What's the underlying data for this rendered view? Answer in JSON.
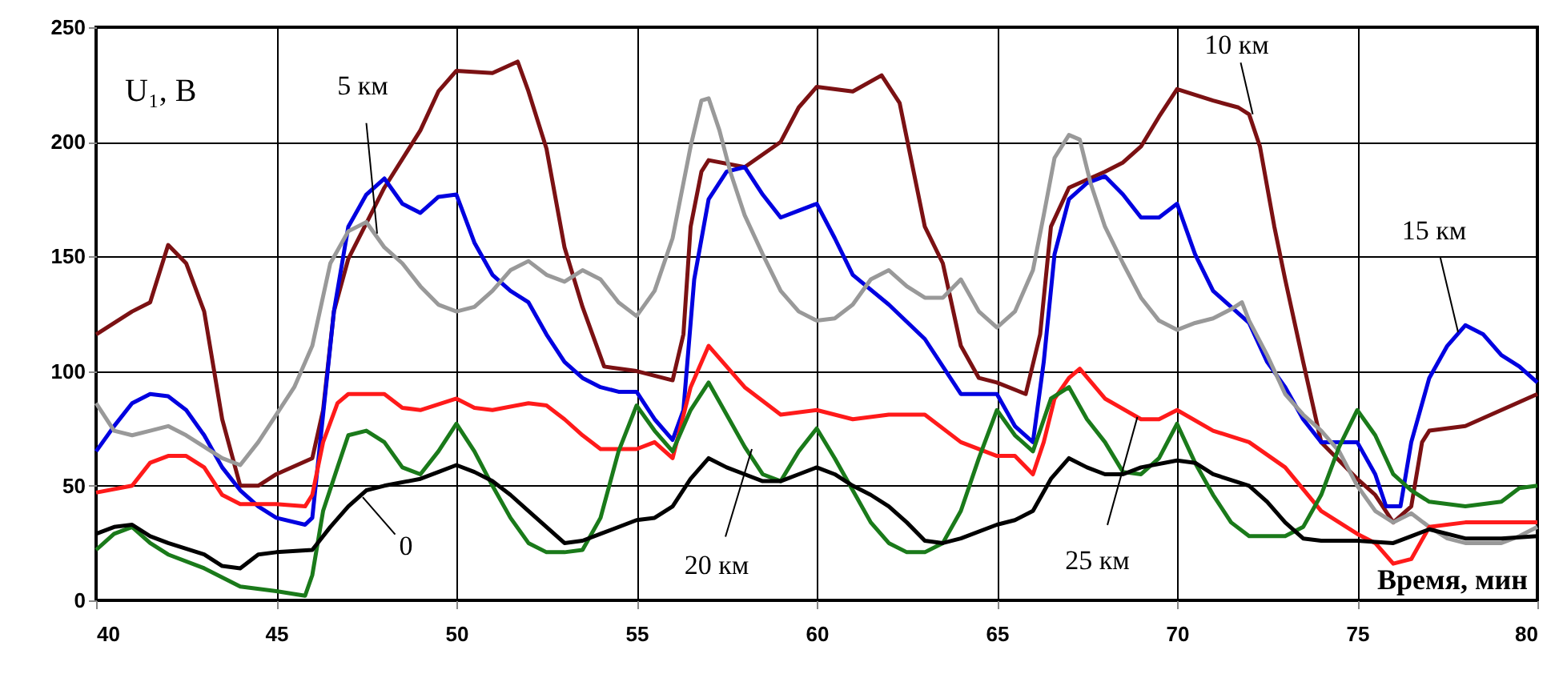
{
  "chart_data": {
    "type": "line",
    "xlabel": "Время, мин",
    "ylabel": "U₁, В",
    "xlim": [
      40,
      80
    ],
    "xticks": [
      40,
      45,
      50,
      55,
      60,
      65,
      70,
      75,
      80
    ],
    "ylim": [
      0,
      250
    ],
    "yticks": [
      0,
      50,
      100,
      150,
      200,
      250
    ],
    "grid": true,
    "series": [
      {
        "color": "#7b1113",
        "x": [
          40,
          41,
          41.5,
          42,
          42.5,
          43,
          43.5,
          44,
          44.5,
          45,
          46,
          46.3,
          46.6,
          47,
          48,
          49,
          49.5,
          50,
          51,
          51.7,
          52,
          52.5,
          53,
          53.5,
          54.1,
          55,
          56,
          56.3,
          56.5,
          56.8,
          57,
          58,
          59,
          59.5,
          60,
          61,
          61.8,
          62.3,
          63,
          63.5,
          64,
          64.5,
          65,
          65.8,
          66.2,
          66.5,
          67,
          68,
          68.5,
          69,
          69.5,
          70,
          71,
          71.7,
          72,
          72.3,
          72.7,
          73,
          73.5,
          74,
          75,
          75.5,
          76,
          76.5,
          76.8,
          77,
          78,
          79,
          80
        ],
        "values": [
          116,
          126,
          130,
          155,
          147,
          126,
          79,
          50,
          50,
          55,
          62,
          83,
          126,
          149,
          180,
          205,
          222,
          231,
          230,
          235,
          222,
          197,
          154,
          128,
          102,
          100,
          96,
          116,
          163,
          187,
          192,
          189,
          200,
          215,
          224,
          222,
          229,
          217,
          163,
          147,
          111,
          97,
          95,
          90,
          116,
          163,
          180,
          187,
          191,
          198,
          211,
          223,
          218,
          215,
          212,
          198,
          163,
          140,
          104,
          69,
          53,
          46,
          34,
          41,
          69,
          74,
          76,
          83,
          90
        ]
      },
      {
        "color": "#0000e0",
        "x": [
          40,
          40.5,
          41,
          41.5,
          42,
          42.5,
          43,
          43.5,
          44,
          44.5,
          45,
          45.8,
          46,
          46.3,
          46.6,
          47,
          47.5,
          48,
          48.5,
          49,
          49.5,
          50,
          50.5,
          51,
          51.5,
          52,
          52.5,
          53,
          53.5,
          54,
          54.5,
          55,
          55.5,
          56,
          56.3,
          56.6,
          57,
          57.5,
          58,
          58.5,
          59,
          59.5,
          60,
          60.5,
          61,
          62,
          63,
          64,
          65,
          65.5,
          66,
          66.3,
          66.6,
          67,
          67.5,
          68,
          68.5,
          69,
          69.5,
          70,
          70.5,
          71,
          71.5,
          72,
          72.5,
          73,
          73.5,
          74,
          75,
          75.5,
          75.8,
          76.2,
          76.5,
          77,
          77.5,
          78,
          78.5,
          79,
          79.5,
          80
        ],
        "values": [
          65,
          76,
          86,
          90,
          89,
          83,
          72,
          58,
          48,
          41,
          36,
          33,
          36,
          81,
          126,
          163,
          177,
          184,
          173,
          169,
          176,
          177,
          156,
          142,
          135,
          130,
          116,
          104,
          97,
          93,
          91,
          91,
          79,
          70,
          83,
          140,
          175,
          187,
          189,
          177,
          167,
          170,
          173,
          158,
          142,
          129,
          114,
          90,
          90,
          76,
          69,
          104,
          151,
          175,
          182,
          185,
          177,
          167,
          167,
          173,
          151,
          135,
          128,
          121,
          104,
          93,
          79,
          69,
          69,
          55,
          41,
          41,
          69,
          97,
          111,
          120,
          116,
          107,
          102,
          95
        ]
      },
      {
        "color": "#999999",
        "x": [
          40,
          40.5,
          41,
          41.5,
          42,
          42.5,
          43,
          43.5,
          44,
          44.5,
          45,
          45.5,
          46,
          46.5,
          47,
          47.5,
          48,
          48.5,
          49,
          49.5,
          50,
          50.5,
          51,
          51.5,
          52,
          52.5,
          53,
          53.5,
          54,
          54.5,
          55,
          55.5,
          56,
          56.5,
          56.8,
          57,
          57.3,
          57.6,
          58,
          58.5,
          59,
          59.5,
          60,
          60.5,
          61,
          61.5,
          62,
          62.5,
          63,
          63.5,
          64,
          64.5,
          65,
          65.5,
          66,
          66.3,
          66.6,
          67,
          67.3,
          67.6,
          68,
          68.5,
          69,
          69.5,
          70,
          70.5,
          71,
          71.5,
          71.8,
          72,
          72.5,
          73,
          73.5,
          74,
          74.5,
          75,
          75.5,
          76,
          76.5,
          77,
          77.5,
          78,
          79,
          79.5,
          80
        ],
        "values": [
          86,
          74,
          72,
          74,
          76,
          72,
          67,
          62,
          59,
          69,
          81,
          93,
          111,
          147,
          161,
          165,
          154,
          147,
          137,
          129,
          126,
          128,
          135,
          144,
          148,
          142,
          139,
          144,
          140,
          130,
          124,
          135,
          158,
          198,
          218,
          219,
          205,
          187,
          168,
          151,
          135,
          126,
          122,
          123,
          129,
          140,
          144,
          137,
          132,
          132,
          140,
          126,
          119,
          126,
          144,
          168,
          193,
          203,
          201,
          182,
          163,
          147,
          132,
          122,
          118,
          121,
          123,
          127,
          130,
          122,
          107,
          90,
          81,
          74,
          65,
          50,
          39,
          34,
          38,
          32,
          27,
          25,
          25,
          28,
          32
        ]
      },
      {
        "color": "#ff1a1a",
        "x": [
          40,
          41,
          41.5,
          42,
          42.5,
          43,
          43.5,
          44,
          45,
          45.8,
          46,
          46.3,
          46.7,
          47,
          48,
          48.5,
          49,
          50,
          50.5,
          51,
          52,
          52.5,
          53,
          53.5,
          54,
          55,
          55.5,
          56,
          56.5,
          57,
          57.5,
          58,
          59,
          60,
          61,
          62,
          63,
          64,
          65,
          65.5,
          66,
          66.3,
          66.6,
          67,
          67.3,
          68,
          69,
          69.5,
          70,
          71,
          72,
          73,
          74,
          75,
          75.5,
          76,
          76.5,
          77,
          78,
          79,
          80
        ],
        "values": [
          47,
          50,
          60,
          63,
          63,
          58,
          46,
          42,
          42,
          41,
          46,
          69,
          86,
          90,
          90,
          84,
          83,
          88,
          84,
          83,
          86,
          85,
          79,
          72,
          66,
          66,
          69,
          62,
          93,
          111,
          102,
          93,
          81,
          83,
          79,
          81,
          81,
          69,
          63,
          63,
          55,
          69,
          88,
          97,
          101,
          88,
          79,
          79,
          83,
          74,
          69,
          58,
          39,
          29,
          25,
          16,
          18,
          32,
          34,
          34,
          34
        ]
      },
      {
        "color": "#1a7a1a",
        "x": [
          40,
          40.5,
          41,
          41.5,
          42,
          43,
          44,
          45,
          45.8,
          46,
          46.3,
          46.7,
          47,
          47.5,
          48,
          48.5,
          49,
          49.5,
          50,
          50.5,
          51,
          51.5,
          52,
          52.5,
          53,
          53.5,
          54,
          54.5,
          55,
          55.5,
          56,
          56.5,
          57,
          57.5,
          58,
          58.5,
          59,
          59.5,
          60,
          60.5,
          61,
          61.5,
          62,
          62.5,
          63,
          63.5,
          64,
          64.5,
          65,
          65.5,
          66,
          66.5,
          67,
          67.5,
          68,
          68.5,
          69,
          69.5,
          70,
          70.5,
          71,
          71.5,
          72,
          73,
          73.5,
          74,
          74.5,
          75,
          75.5,
          76,
          76.5,
          77,
          78,
          79,
          79.5,
          80
        ],
        "values": [
          22,
          29,
          32,
          25,
          20,
          14,
          6,
          4,
          2,
          11,
          39,
          58,
          72,
          74,
          69,
          58,
          55,
          65,
          77,
          65,
          50,
          36,
          25,
          21,
          21,
          22,
          36,
          65,
          85,
          74,
          65,
          83,
          95,
          81,
          67,
          55,
          52,
          65,
          75,
          62,
          48,
          34,
          25,
          21,
          21,
          25,
          39,
          62,
          83,
          72,
          65,
          88,
          93,
          79,
          69,
          56,
          55,
          62,
          77,
          60,
          46,
          34,
          28,
          28,
          32,
          46,
          67,
          83,
          72,
          55,
          48,
          43,
          41,
          43,
          49,
          50
        ]
      },
      {
        "color": "#000000",
        "x": [
          40,
          40.5,
          41,
          41.5,
          42,
          43,
          43.5,
          44,
          44.5,
          45,
          46,
          46.5,
          47,
          47.5,
          48,
          49,
          49.5,
          50,
          50.5,
          51,
          51.5,
          52,
          52.5,
          53,
          53.5,
          54,
          55,
          55.5,
          56,
          56.5,
          57,
          57.5,
          58,
          58.5,
          59,
          59.5,
          60,
          60.5,
          61,
          61.5,
          62,
          62.5,
          63,
          63.5,
          64,
          65,
          65.5,
          66,
          66.5,
          67,
          67.5,
          68,
          68.5,
          69,
          70,
          70.5,
          71,
          72,
          72.5,
          73,
          73.5,
          74,
          75,
          76,
          76.5,
          77,
          78,
          79,
          80
        ],
        "values": [
          29,
          32,
          33,
          28,
          25,
          20,
          15,
          14,
          20,
          21,
          22,
          32,
          41,
          48,
          50,
          53,
          56,
          59,
          56,
          52,
          46,
          39,
          32,
          25,
          26,
          29,
          35,
          36,
          41,
          53,
          62,
          58,
          55,
          52,
          52,
          55,
          58,
          55,
          50,
          46,
          41,
          34,
          26,
          25,
          27,
          33,
          35,
          39,
          53,
          62,
          58,
          55,
          55,
          58,
          61,
          60,
          55,
          50,
          43,
          34,
          27,
          26,
          26,
          25,
          28,
          31,
          27,
          27,
          28
        ]
      }
    ],
    "annotations": [
      {
        "text": "0",
        "x": 47.4,
        "y": 45
      },
      {
        "text": "5 км",
        "x": 47.8,
        "y": 160
      },
      {
        "text": "10 км",
        "x": 72.1,
        "y": 212
      },
      {
        "text": "15 км",
        "x": 77.8,
        "y": 117
      },
      {
        "text": "20 км",
        "x": 58.2,
        "y": 66
      },
      {
        "text": "25 км",
        "x": 68.9,
        "y": 80
      }
    ]
  }
}
